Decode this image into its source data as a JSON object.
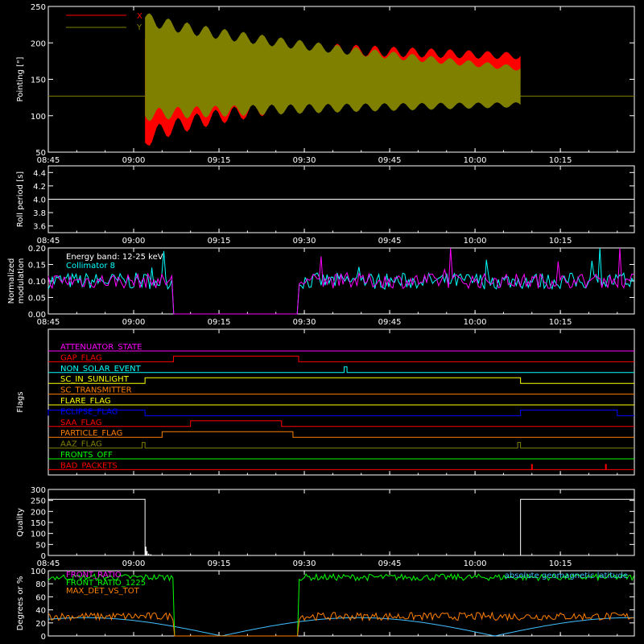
{
  "colors": {
    "axis": "#ffffff",
    "red": "#ff0000",
    "olive": "#808000",
    "magenta": "#ff00ff",
    "cyan": "#00ffff",
    "green": "#00ff00",
    "orange": "#ff8000",
    "yellow": "#ffff00",
    "blue": "#0000ff",
    "lightblue": "#40c0ff"
  },
  "x_time_ticks": [
    "08:45",
    "09:00",
    "09:15",
    "09:30",
    "09:45",
    "10:00",
    "10:15"
  ],
  "chart_data": [
    {
      "id": "pointing",
      "type": "area",
      "ylabel": "Pointing [\"]",
      "ylim": [
        50,
        250
      ],
      "y_ticks": [
        "50",
        "100",
        "150",
        "200",
        "250"
      ],
      "series": [
        {
          "name": "X",
          "color": "#ff0000",
          "start": "09:02",
          "end": "10:08",
          "upper_start": 205,
          "upper_end": 182,
          "lower_start": 63,
          "lower_end": 150,
          "baseline": 127
        },
        {
          "name": "Y",
          "color": "#808000",
          "start": "09:02",
          "end": "10:08",
          "upper_start": 235,
          "upper_end": 165,
          "lower_start": 100,
          "lower_end": 115,
          "baseline": 127
        }
      ]
    },
    {
      "id": "roll-period",
      "type": "line",
      "ylabel": "Roll period [s]",
      "ylim": [
        3.5,
        4.5
      ],
      "y_ticks": [
        "3.6",
        "3.8",
        "4.0",
        "4.2",
        "4.4"
      ],
      "value": 4.0
    },
    {
      "id": "modulation",
      "type": "line",
      "ylabel": "Normalized modulation",
      "ylim": [
        0.0,
        0.2
      ],
      "y_ticks": [
        "0.00",
        "0.05",
        "0.10",
        "0.15",
        "0.20"
      ],
      "annotations": [
        "Energy band: 12-25 keV",
        "Collimator 8"
      ],
      "gaps": [
        [
          "09:07",
          "09:29"
        ]
      ],
      "typical_value": 0.1
    },
    {
      "id": "flags",
      "type": "line",
      "ylabel": "Flags",
      "flags": [
        {
          "name": "ATTENUATOR_STATE",
          "color": "#ff00ff",
          "high": []
        },
        {
          "name": "GAP_FLAG",
          "color": "#ff0000",
          "high": [
            [
              "09:07",
              "09:29"
            ]
          ]
        },
        {
          "name": "NON_SOLAR_EVENT",
          "color": "#00ffff",
          "high": [
            [
              "09:37",
              "09:37.5"
            ]
          ]
        },
        {
          "name": "SC_IN_SUNLIGHT",
          "color": "#ffff00",
          "high": [
            [
              "09:02",
              "10:08"
            ]
          ]
        },
        {
          "name": "SC_TRANSMITTER",
          "color": "#ff8000",
          "high": []
        },
        {
          "name": "FLARE_FLAG",
          "color": "#ffff00",
          "high": []
        },
        {
          "name": "ECLIPSE_FLAG",
          "color": "#0000ff",
          "high": [
            [
              "08:45",
              "09:02"
            ],
            [
              "10:08",
              "10:25"
            ]
          ]
        },
        {
          "name": "SAA_FLAG",
          "color": "#ff0000",
          "high": [
            [
              "09:10",
              "09:26"
            ]
          ]
        },
        {
          "name": "PARTICLE_FLAG",
          "color": "#ff8000",
          "high": [
            [
              "09:05",
              "09:28"
            ]
          ]
        },
        {
          "name": "AAZ_FLAG",
          "color": "#808000",
          "high": [
            [
              "09:01.5",
              "09:02"
            ],
            [
              "10:07.5",
              "10:08"
            ]
          ]
        },
        {
          "name": "FRONTS_OFF",
          "color": "#00ff00",
          "high": []
        },
        {
          "name": "BAD_PACKETS",
          "color": "#ff0000",
          "spikes": [
            "10:10",
            "10:23"
          ]
        }
      ]
    },
    {
      "id": "quality",
      "type": "line",
      "ylabel": "Quality",
      "ylim": [
        0,
        300
      ],
      "y_ticks": [
        "0",
        "50",
        "100",
        "150",
        "200",
        "250",
        "300"
      ],
      "high_value": 255,
      "low_interval": [
        "09:02",
        "10:08"
      ]
    },
    {
      "id": "ratios",
      "type": "line",
      "ylabel": "Degrees or %",
      "ylim": [
        0,
        100
      ],
      "y_ticks": [
        "0",
        "20",
        "40",
        "60",
        "80",
        "100"
      ],
      "series": [
        {
          "name": "FRONT_RATIO",
          "color": "#ff00ff"
        },
        {
          "name": "FRONT_RATIO_1225",
          "color": "#00ff00",
          "typical": 90
        },
        {
          "name": "MAX_DET_VS_TOT",
          "color": "#ff8000",
          "typical": 30
        }
      ],
      "right_label": "absolute geomagnetic latitude",
      "gaps": [
        [
          "09:07",
          "09:29"
        ]
      ]
    }
  ]
}
